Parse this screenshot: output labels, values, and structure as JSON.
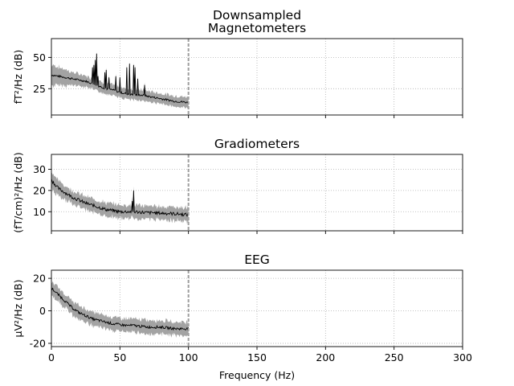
{
  "figure": {
    "suptitle": "Downsampled"
  },
  "chart_data": [
    {
      "type": "line",
      "title": "Magnetometers",
      "xlabel": "",
      "ylabel": "fT²/Hz (dB)",
      "xlim": [
        0,
        300
      ],
      "ylim": [
        4,
        65
      ],
      "yticks": [
        25,
        50
      ],
      "xticks": [
        0,
        50,
        100,
        150,
        200,
        250,
        300
      ],
      "show_xtick_labels": false,
      "grid": true,
      "nyquist_line_x": 100,
      "mean_color": "#000000",
      "band_color": "#9e9e9e",
      "mean": [
        [
          0,
          36
        ],
        [
          5,
          35
        ],
        [
          10,
          34
        ],
        [
          15,
          33
        ],
        [
          20,
          32
        ],
        [
          25,
          31
        ],
        [
          30,
          29
        ],
        [
          35,
          27
        ],
        [
          40,
          25
        ],
        [
          45,
          24
        ],
        [
          50,
          22
        ],
        [
          55,
          21
        ],
        [
          60,
          20
        ],
        [
          65,
          20
        ],
        [
          70,
          19
        ],
        [
          75,
          18
        ],
        [
          80,
          17
        ],
        [
          85,
          16
        ],
        [
          90,
          15
        ],
        [
          95,
          14.5
        ],
        [
          100,
          14
        ]
      ],
      "band": [
        8,
        7,
        6,
        5,
        4.5,
        4,
        4,
        4,
        4,
        4,
        4,
        4,
        4,
        4,
        4,
        4,
        4,
        4,
        4,
        4,
        4
      ],
      "spikes": [
        [
          30,
          42
        ],
        [
          31,
          44
        ],
        [
          32,
          48
        ],
        [
          33,
          53
        ],
        [
          34,
          35
        ],
        [
          39,
          38
        ],
        [
          40,
          40
        ],
        [
          42,
          34
        ],
        [
          47,
          35
        ],
        [
          50,
          34
        ],
        [
          55,
          42
        ],
        [
          57,
          45
        ],
        [
          60,
          44
        ],
        [
          61,
          42
        ],
        [
          63,
          33
        ],
        [
          68,
          28
        ]
      ]
    },
    {
      "type": "line",
      "title": "Gradiometers",
      "xlabel": "",
      "ylabel": "(fT/cm)²/Hz (dB)",
      "xlim": [
        0,
        300
      ],
      "ylim": [
        1,
        37
      ],
      "yticks": [
        10,
        20,
        30
      ],
      "xticks": [
        0,
        50,
        100,
        150,
        200,
        250,
        300
      ],
      "show_xtick_labels": false,
      "grid": true,
      "nyquist_line_x": 100,
      "mean_color": "#000000",
      "band_color": "#9e9e9e",
      "mean": [
        [
          0,
          25
        ],
        [
          5,
          21
        ],
        [
          10,
          19
        ],
        [
          15,
          17
        ],
        [
          20,
          15.5
        ],
        [
          25,
          14
        ],
        [
          30,
          13
        ],
        [
          35,
          12
        ],
        [
          40,
          11
        ],
        [
          45,
          10.5
        ],
        [
          50,
          10
        ],
        [
          55,
          10
        ],
        [
          60,
          10
        ],
        [
          65,
          9.8
        ],
        [
          70,
          9.5
        ],
        [
          75,
          9.5
        ],
        [
          80,
          9.3
        ],
        [
          85,
          9.2
        ],
        [
          90,
          9
        ],
        [
          95,
          8.8
        ],
        [
          100,
          8.5
        ]
      ],
      "band": [
        4,
        3.5,
        3,
        3,
        3,
        3,
        3,
        3,
        3,
        3,
        3,
        3,
        3,
        3,
        3,
        3,
        3,
        3,
        3,
        3,
        3
      ],
      "spikes": [
        [
          60,
          20
        ],
        [
          59,
          15
        ]
      ]
    },
    {
      "type": "line",
      "title": "EEG",
      "xlabel": "Frequency (Hz)",
      "ylabel": "µV²/Hz (dB)",
      "xlim": [
        0,
        300
      ],
      "ylim": [
        -22,
        25
      ],
      "yticks": [
        -20,
        0,
        20
      ],
      "xticks": [
        0,
        50,
        100,
        150,
        200,
        250,
        300
      ],
      "show_xtick_labels": true,
      "grid": true,
      "nyquist_line_x": 100,
      "mean_color": "#000000",
      "band_color": "#9e9e9e",
      "mean": [
        [
          0,
          14
        ],
        [
          5,
          10
        ],
        [
          10,
          6
        ],
        [
          15,
          2
        ],
        [
          20,
          -1
        ],
        [
          25,
          -3
        ],
        [
          30,
          -5
        ],
        [
          35,
          -6
        ],
        [
          40,
          -7
        ],
        [
          45,
          -8
        ],
        [
          50,
          -8.5
        ],
        [
          55,
          -9
        ],
        [
          60,
          -9
        ],
        [
          65,
          -9.5
        ],
        [
          70,
          -10
        ],
        [
          75,
          -10
        ],
        [
          80,
          -10
        ],
        [
          85,
          -10.5
        ],
        [
          90,
          -11
        ],
        [
          95,
          -11
        ],
        [
          100,
          -11
        ]
      ],
      "band": [
        4,
        4,
        4,
        4,
        4,
        4,
        4,
        4,
        4,
        4,
        4,
        4,
        4,
        4,
        4,
        4,
        4,
        4,
        4,
        4,
        4
      ],
      "spikes": []
    }
  ]
}
